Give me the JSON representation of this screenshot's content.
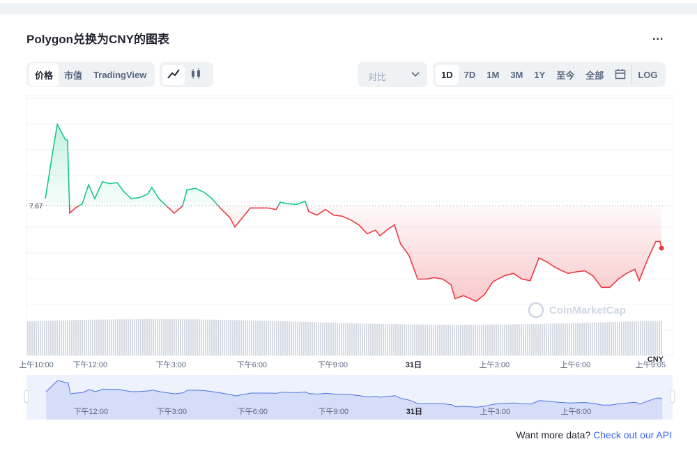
{
  "header": {
    "title": "Polygon兑换为CNY的图表",
    "menu": "..."
  },
  "tabs": [
    "价格",
    "市值",
    "TradingView"
  ],
  "compare": "对比",
  "ranges": [
    "1D",
    "7D",
    "1M",
    "3M",
    "1Y",
    "至今",
    "全部"
  ],
  "log": "LOG",
  "chart_data": {
    "type": "line",
    "x": [
      10.34,
      10.62,
      10.78,
      11.09,
      11.16,
      11.24,
      11.45,
      11.71,
      11.94,
      12.17,
      12.46,
      12.72,
      13.0,
      13.26,
      13.52,
      13.83,
      14.14,
      14.29,
      14.55,
      14.91,
      15.12,
      15.43,
      15.59,
      15.9,
      16.21,
      16.52,
      16.88,
      17.19,
      17.37,
      17.65,
      17.94,
      18.25,
      18.59,
      18.9,
      19.05,
      19.36,
      19.67,
      19.98,
      20.11,
      20.42,
      20.73,
      21.04,
      21.35,
      21.66,
      21.97,
      22.28,
      22.59,
      22.75,
      23.06,
      23.29,
      23.52,
      23.83,
      24.15,
      24.46,
      24.77,
      25.08,
      25.39,
      25.54,
      25.85,
      26.32,
      26.63,
      26.94,
      27.4,
      27.71,
      28.02,
      28.33,
      28.65,
      28.96,
      29.27,
      29.73,
      30.04,
      30.35,
      30.66,
      30.97,
      31.28,
      31.59,
      31.9,
      32.21,
      32.37,
      32.68,
      32.99,
      33.14,
      33.2
    ],
    "values": [
      7.684,
      7.778,
      7.828,
      7.798,
      7.798,
      7.656,
      7.666,
      7.674,
      7.711,
      7.684,
      7.717,
      7.713,
      7.715,
      7.697,
      7.684,
      7.686,
      7.693,
      7.706,
      7.684,
      7.666,
      7.656,
      7.67,
      7.701,
      7.704,
      7.697,
      7.684,
      7.663,
      7.647,
      7.629,
      7.647,
      7.666,
      7.666,
      7.666,
      7.663,
      7.677,
      7.674,
      7.673,
      7.679,
      7.659,
      7.652,
      7.663,
      7.652,
      7.65,
      7.643,
      7.633,
      7.616,
      7.623,
      7.612,
      7.625,
      7.633,
      7.596,
      7.574,
      7.528,
      7.528,
      7.531,
      7.528,
      7.517,
      7.49,
      7.496,
      7.485,
      7.498,
      7.523,
      7.535,
      7.539,
      7.528,
      7.525,
      7.569,
      7.561,
      7.55,
      7.539,
      7.542,
      7.544,
      7.534,
      7.512,
      7.512,
      7.528,
      7.539,
      7.547,
      7.525,
      7.566,
      7.601,
      7.601,
      7.588
    ],
    "xlim": [
      10,
      33.3
    ],
    "ylim": [
      7.38,
      7.88
    ],
    "xticks": [
      {
        "value": 10,
        "label": "上午10:00"
      },
      {
        "value": 12,
        "label": "下午12:00"
      },
      {
        "value": 15,
        "label": "下午3:00"
      },
      {
        "value": 18,
        "label": "下午6:00"
      },
      {
        "value": 21,
        "label": "下午9:00"
      },
      {
        "value": 24,
        "label": "31日"
      },
      {
        "value": 27,
        "label": "上午3:00"
      },
      {
        "value": 30,
        "label": "上午6:00"
      },
      {
        "value": 33.08,
        "label": "上午9:05"
      }
    ],
    "yticks": [
      7.67
    ],
    "currency": "CNY",
    "watermark": "CoinMarketCap",
    "up_color": "#16c784",
    "down_color": "#ea3943",
    "navigator_color": "#4b72e6"
  },
  "footer": {
    "text": "Want more data?",
    "link": "Check out our API"
  }
}
